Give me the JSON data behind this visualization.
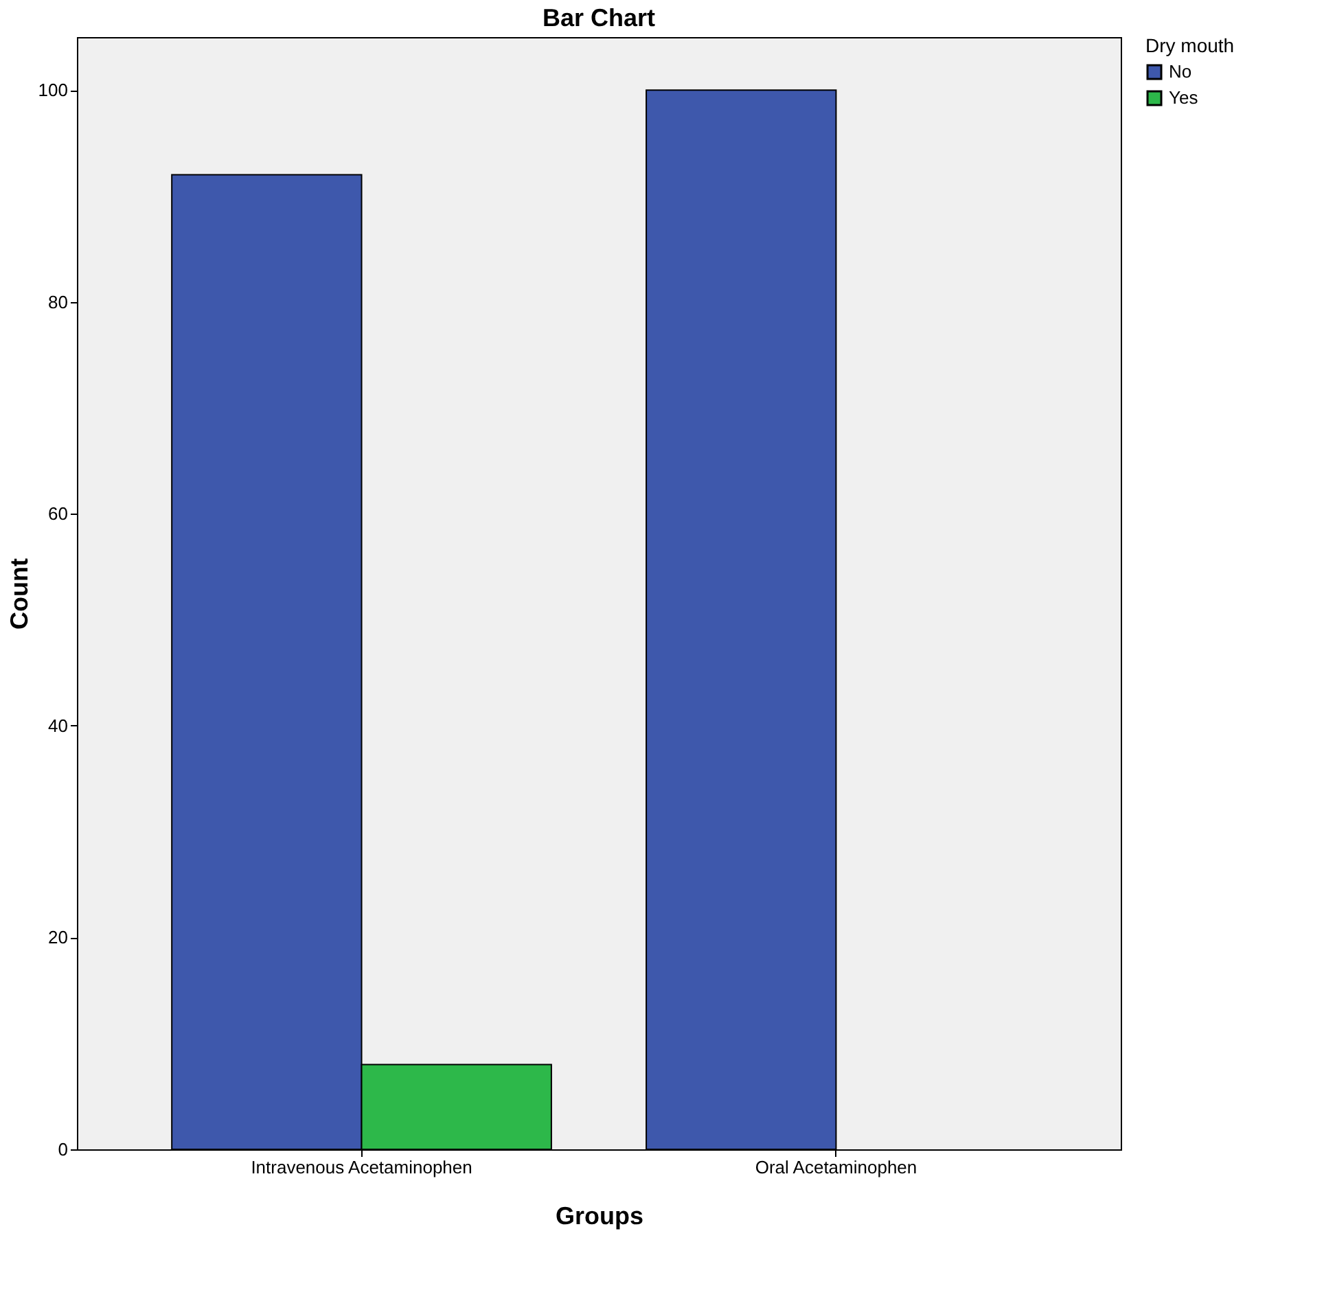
{
  "chart_data": {
    "type": "bar",
    "title": "Bar Chart",
    "xlabel": "Groups",
    "ylabel": "Count",
    "legend_title": "Dry mouth",
    "categories": [
      "Intravenous Acetaminophen",
      "Oral Acetaminophen"
    ],
    "series": [
      {
        "name": "No",
        "color": "#3e58ac",
        "values": [
          92,
          100
        ]
      },
      {
        "name": "Yes",
        "color": "#2db84a",
        "values": [
          8,
          null
        ]
      }
    ],
    "ylim": [
      0,
      105
    ],
    "yticks": [
      0,
      20,
      40,
      60,
      80,
      100
    ],
    "grid": false,
    "legend": "top right"
  }
}
